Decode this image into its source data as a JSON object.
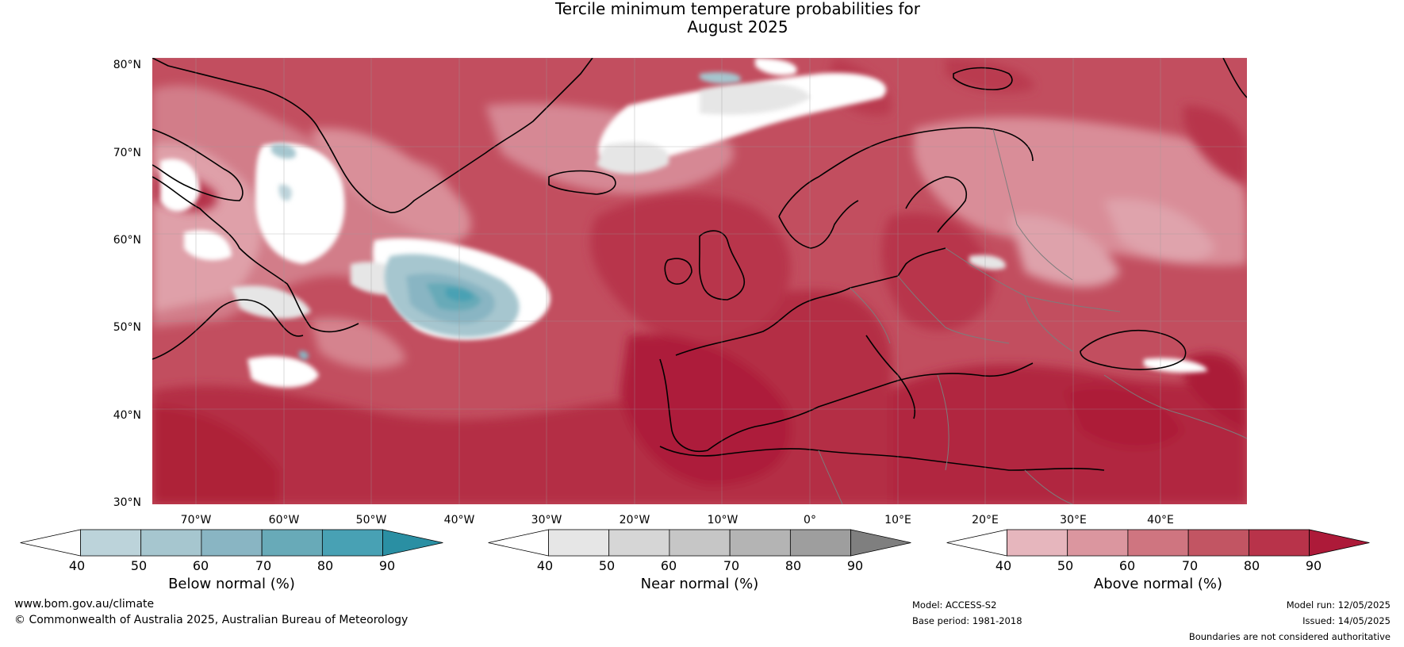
{
  "title": {
    "line1": "Tercile minimum temperature probabilities for",
    "line2": "August 2025"
  },
  "axes": {
    "lat_labels": [
      "80°N",
      "70°N",
      "60°N",
      "50°N",
      "40°N",
      "30°N"
    ],
    "lon_labels": [
      "70°W",
      "60°W",
      "50°W",
      "40°W",
      "30°W",
      "20°W",
      "10°W",
      "0°",
      "10°E",
      "20°E",
      "30°E",
      "40°E"
    ]
  },
  "colorbars": [
    {
      "id": "below",
      "title": "Below normal (%)",
      "ticks": [
        "40",
        "50",
        "60",
        "70",
        "80",
        "90"
      ],
      "colors": [
        "#ffffff",
        "#bcd3da",
        "#a6c6cf",
        "#89b5c3",
        "#68aab8",
        "#48a1b4",
        "#2a8fa3"
      ]
    },
    {
      "id": "near",
      "title": "Near normal (%)",
      "ticks": [
        "40",
        "50",
        "60",
        "70",
        "80",
        "90"
      ],
      "colors": [
        "#ffffff",
        "#e6e6e6",
        "#d6d6d6",
        "#c6c6c6",
        "#b4b4b4",
        "#9e9e9e",
        "#7f7f7f"
      ]
    },
    {
      "id": "above",
      "title": "Above normal (%)",
      "ticks": [
        "40",
        "50",
        "60",
        "70",
        "80",
        "90"
      ],
      "colors": [
        "#ffffff",
        "#e6b6bd",
        "#db969f",
        "#cf7580",
        "#c25563",
        "#b8334a",
        "#ad1a39"
      ]
    }
  ],
  "footer": {
    "website": "www.bom.gov.au/climate",
    "copyright": "© Commonwealth of Australia 2025, Australian Bureau of Meteorology",
    "model": "Model: ACCESS-S2",
    "base_period": "Base period: 1981-2018",
    "model_run": "Model run: 12/05/2025",
    "issued": "Issued: 14/05/2025",
    "disclaimer": "Boundaries are not considered authoritative"
  }
}
